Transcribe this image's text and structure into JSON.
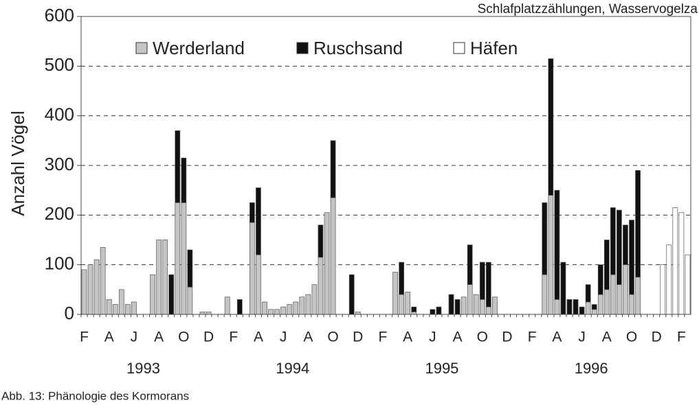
{
  "chart_data": {
    "type": "stacked_bar",
    "title": "Schlafplatzzählungen, Wasservogelza",
    "caption": "Abb. 13: Phänologie des Kormorans",
    "y_label": "Anzahl Vögel",
    "categories": [
      "F",
      null,
      null,
      null,
      "A",
      null,
      null,
      null,
      "J",
      null,
      null,
      null,
      "A",
      null,
      null,
      null,
      "O",
      null,
      null,
      null,
      "D",
      null,
      null,
      null,
      "F",
      null,
      null,
      null,
      "A",
      null,
      null,
      null,
      "J",
      null,
      null,
      null,
      "A",
      null,
      null,
      null,
      "O",
      null,
      null,
      null,
      "D",
      null,
      null,
      null,
      "F",
      null,
      null,
      null,
      "A",
      null,
      null,
      null,
      "J",
      null,
      null,
      null,
      "A",
      null,
      null,
      null,
      "O",
      null,
      null,
      null,
      "D",
      null,
      null,
      null,
      "F",
      null,
      null,
      null,
      "A",
      null,
      null,
      null,
      "J",
      null,
      null,
      null,
      "A",
      null,
      null,
      null,
      "O",
      null,
      null,
      null,
      "D",
      null,
      null,
      null,
      "F",
      null
    ],
    "years": [
      "1993",
      "1994",
      "1995",
      "1996"
    ],
    "series": [
      {
        "name": "Werderland",
        "color": "#c4c4c4",
        "values": [
          90,
          100,
          110,
          135,
          30,
          20,
          50,
          20,
          25,
          0,
          0,
          80,
          150,
          150,
          0,
          225,
          225,
          55,
          0,
          5,
          5,
          0,
          0,
          35,
          0,
          0,
          0,
          185,
          120,
          25,
          10,
          10,
          15,
          20,
          25,
          35,
          40,
          60,
          115,
          205,
          235,
          0,
          0,
          0,
          5,
          0,
          0,
          0,
          0,
          0,
          85,
          40,
          45,
          5,
          0,
          0,
          0,
          0,
          0,
          0,
          0,
          35,
          60,
          40,
          30,
          15,
          35,
          0,
          0,
          0,
          0,
          0,
          0,
          0,
          80,
          240,
          30,
          0,
          0,
          0,
          0,
          25,
          10,
          40,
          50,
          80,
          60,
          100,
          40,
          75,
          0,
          0,
          0,
          0,
          0,
          0,
          0,
          0
        ]
      },
      {
        "name": "Ruschsand",
        "color": "#111111",
        "values": [
          0,
          0,
          0,
          0,
          0,
          0,
          0,
          0,
          0,
          0,
          0,
          0,
          0,
          0,
          80,
          145,
          90,
          75,
          0,
          0,
          0,
          0,
          0,
          0,
          0,
          30,
          0,
          40,
          135,
          0,
          0,
          0,
          0,
          0,
          0,
          0,
          0,
          0,
          65,
          0,
          115,
          0,
          0,
          80,
          0,
          0,
          0,
          0,
          0,
          0,
          0,
          65,
          0,
          10,
          0,
          0,
          10,
          15,
          0,
          40,
          30,
          0,
          80,
          0,
          75,
          90,
          0,
          0,
          0,
          0,
          0,
          0,
          0,
          0,
          145,
          275,
          220,
          105,
          30,
          30,
          15,
          35,
          10,
          60,
          100,
          135,
          150,
          80,
          150,
          215,
          0,
          0,
          0,
          0,
          0,
          0,
          0,
          0
        ]
      },
      {
        "name": "Häfen",
        "color": "#ffffff",
        "values": [
          0,
          0,
          0,
          0,
          0,
          0,
          0,
          0,
          0,
          0,
          0,
          0,
          0,
          0,
          0,
          0,
          0,
          0,
          0,
          0,
          0,
          0,
          0,
          0,
          0,
          0,
          0,
          0,
          0,
          0,
          0,
          0,
          0,
          0,
          0,
          0,
          0,
          0,
          0,
          0,
          0,
          0,
          0,
          0,
          0,
          0,
          0,
          0,
          0,
          0,
          0,
          0,
          0,
          0,
          0,
          0,
          0,
          0,
          0,
          0,
          0,
          0,
          0,
          0,
          0,
          0,
          0,
          0,
          0,
          0,
          0,
          0,
          0,
          0,
          0,
          0,
          0,
          0,
          0,
          0,
          0,
          0,
          0,
          0,
          0,
          0,
          0,
          0,
          0,
          0,
          0,
          0,
          0,
          100,
          140,
          215,
          205,
          120
        ]
      }
    ],
    "ylim": [
      0,
      600
    ],
    "yticks": [
      0,
      100,
      200,
      300,
      400,
      500,
      600
    ],
    "grid": true
  }
}
